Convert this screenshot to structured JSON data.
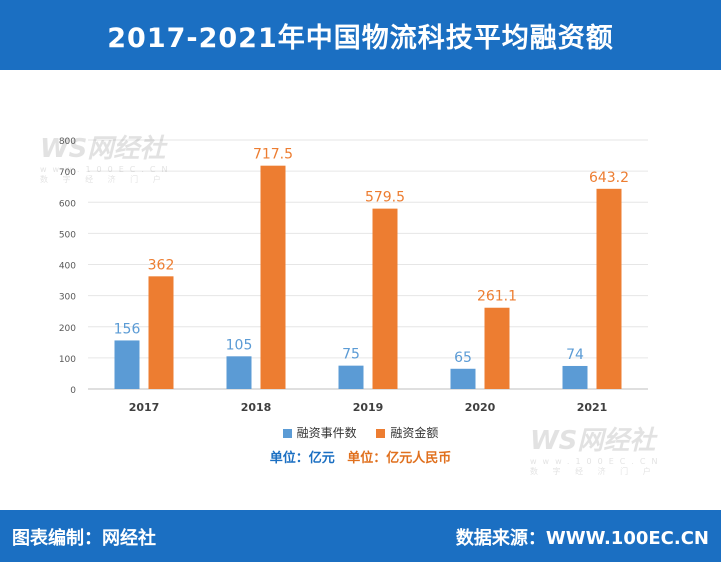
{
  "title": "2017-2021年中国物流科技平均融资额",
  "footer": {
    "left": "图表编制：网经社",
    "right": "数据来源：WWW.100EC.CN"
  },
  "watermark": {
    "logo": "WS网经社",
    "url": "www.100EC.CN",
    "tagline": "数 字 经 济 门 户"
  },
  "units": {
    "count": "单位：亿元",
    "amount": "单位：亿元人民币"
  },
  "colors": {
    "header": "#1b6fc2",
    "series1": "#5b9bd5",
    "series2": "#ed7d31",
    "count_unit": "#1b6fc2",
    "amount_unit": "#e0701e"
  },
  "chart_data": {
    "type": "bar",
    "categories": [
      "2017",
      "2018",
      "2019",
      "2020",
      "2021"
    ],
    "series": [
      {
        "name": "融资事件数",
        "values": [
          156,
          105,
          75,
          65,
          74
        ]
      },
      {
        "name": "融资金额",
        "values": [
          362,
          717.5,
          579.5,
          261.1,
          643.2
        ]
      }
    ],
    "ylim": [
      0,
      800
    ],
    "yticks": [
      0,
      100,
      200,
      300,
      400,
      500,
      600,
      700,
      800
    ],
    "data_labels": true,
    "grid": true,
    "legend_position": "bottom"
  }
}
